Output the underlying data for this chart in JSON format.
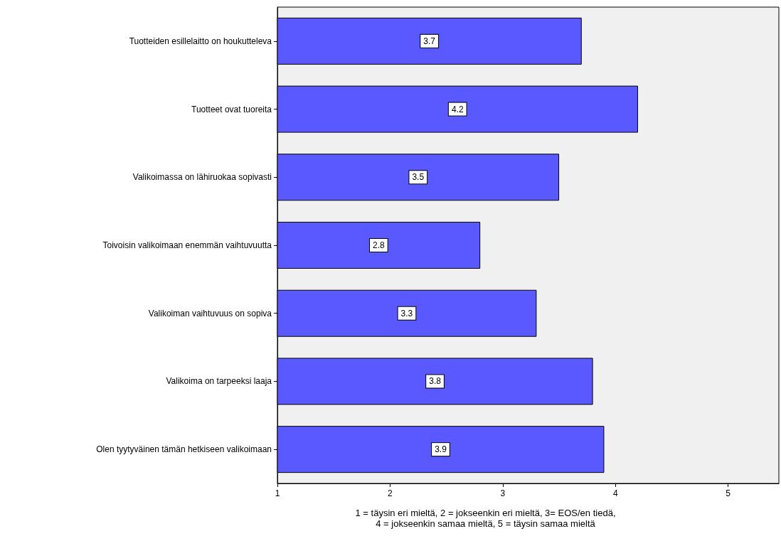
{
  "chart_data": {
    "type": "bar",
    "orientation": "horizontal",
    "categories": [
      "Tuotteiden esillelaitto on houkutteleva",
      "Tuotteet ovat tuoreita",
      "Valikoimassa on lähiruokaa sopivasti",
      "Toivoisin valikoimaan enemmän vaihtuvuutta",
      "Valikoiman vaihtuvuus on sopiva",
      "Valikoima on tarpeeksi laaja",
      "Olen tyytyväinen tämän hetkiseen valikoimaan"
    ],
    "values": [
      3.7,
      4.2,
      3.5,
      2.8,
      3.3,
      3.8,
      3.9
    ],
    "color": "#5959ff",
    "xlim": [
      1,
      5.45
    ],
    "xticks": [
      1,
      2,
      3,
      4,
      5
    ],
    "data_labels": true,
    "grid": false,
    "xlabel": "1 = täysin eri mieltä, 2 = jokseenkin eri mieltä, 3= EOS/en tiedä,\n4 = jokseenkin samaa mieltä, 5 = täysin samaa mieltä"
  }
}
